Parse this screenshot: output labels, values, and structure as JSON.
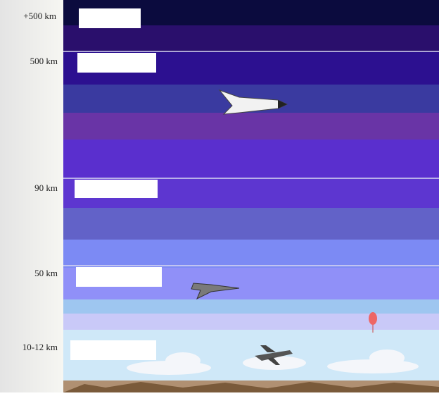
{
  "altitude_labels": [
    "+500 km",
    "500 km",
    "90 km",
    "50 km",
    "10-12 km"
  ]
}
